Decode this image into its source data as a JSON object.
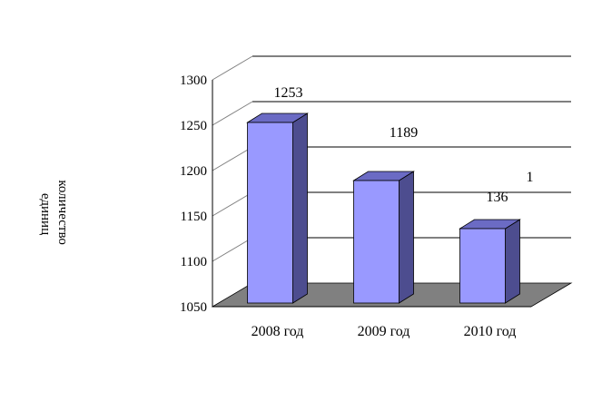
{
  "chart_data": {
    "type": "bar",
    "title": "",
    "xlabel": "",
    "ylabel": "количество единиц",
    "ylabel_lines": [
      "количество",
      "единиц"
    ],
    "categories": [
      "2008 год",
      "2009 год",
      "2010 год"
    ],
    "values": [
      1253,
      1189,
      1136
    ],
    "data_labels": [
      [
        "1253"
      ],
      [
        "1189"
      ],
      [
        "1",
        "136"
      ]
    ],
    "ylim": [
      1050,
      1300
    ],
    "yticks": [
      1050,
      1100,
      1150,
      1200,
      1250,
      1300
    ],
    "ytick_labels": [
      "1050",
      "1100",
      "1150",
      "1200",
      "1250",
      "1300"
    ],
    "grid": true,
    "legend": "none",
    "style": "3d-column",
    "colors": {
      "bar_front": "#9999ff",
      "bar_top": "#6b6bc4",
      "bar_side": "#4d4d8f",
      "floor": "#808080",
      "grid": "#000000"
    }
  }
}
